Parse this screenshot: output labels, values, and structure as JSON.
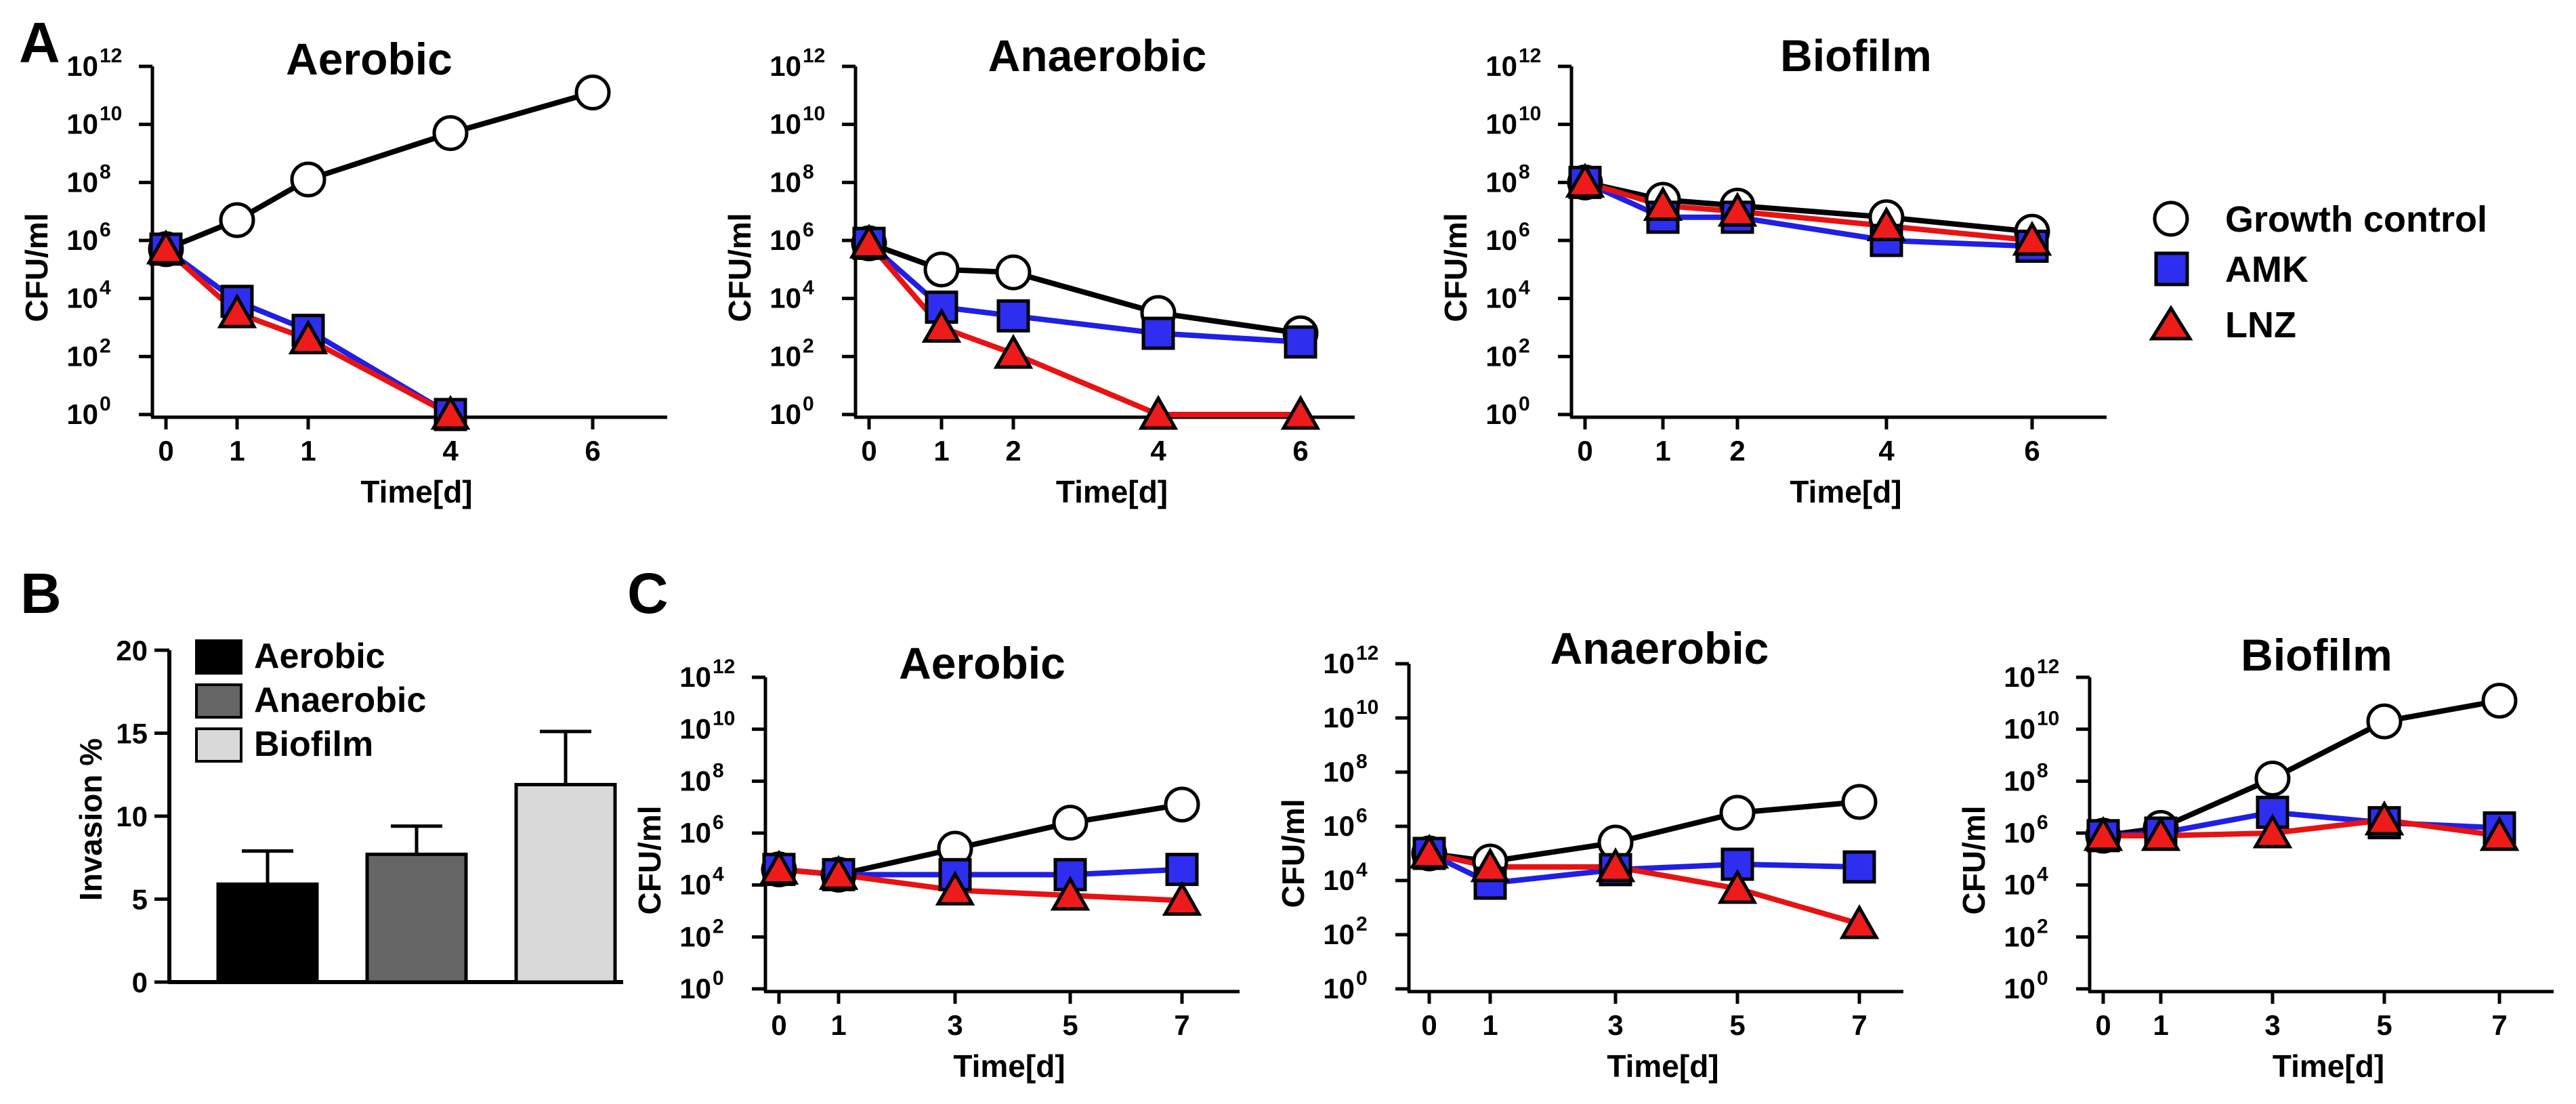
{
  "panels": [
    {
      "letter": "A"
    },
    {
      "letter": "B"
    },
    {
      "letter": "C"
    }
  ],
  "series_legend": [
    {
      "name": "Growth control",
      "marker": "circle",
      "color": "#000000",
      "fill": "#ffffff"
    },
    {
      "name": "AMK",
      "marker": "square",
      "color": "#1f1fe6",
      "fill": "#2e2ef0"
    },
    {
      "name": "LNZ",
      "marker": "triangle",
      "color": "#e81212",
      "fill": "#ee1b1b"
    }
  ],
  "colors": {
    "growth_line": "#000000",
    "amk_line": "#1f1fe6",
    "lnz_line": "#e81212",
    "bar_aerobic": "#000000",
    "bar_anaerobic": "#666666",
    "bar_biofilm": "#d9d9d9"
  },
  "chart_data": [
    {
      "id": "A1",
      "type": "line",
      "panel": "A",
      "title": "Aerobic",
      "xlabel": "Time[d]",
      "ylabel": "CFU/ml",
      "yscale": "log10",
      "ylim_exp": [
        0,
        12
      ],
      "y_ticks": [
        "10",
        "10",
        "10",
        "10",
        "10",
        "10",
        "10"
      ],
      "y_tick_exponents": [
        "0",
        "2",
        "4",
        "6",
        "8",
        "10",
        "12"
      ],
      "x_tick_labels": [
        "0",
        "1",
        "1",
        "4",
        "6"
      ],
      "series": [
        {
          "name": "Growth control",
          "log10_values": [
            5.7,
            6.7,
            8.1,
            9.7,
            11.1
          ]
        },
        {
          "name": "AMK",
          "log10_values": [
            5.7,
            3.9,
            2.9,
            0.0,
            null
          ]
        },
        {
          "name": "LNZ",
          "log10_values": [
            5.7,
            3.5,
            2.6,
            0.0,
            null
          ]
        }
      ]
    },
    {
      "id": "A2",
      "type": "line",
      "panel": "A",
      "title": "Anaerobic",
      "xlabel": "Time[d]",
      "ylabel": "CFU/ml",
      "yscale": "log10",
      "ylim_exp": [
        0,
        12
      ],
      "y_ticks": [
        "10",
        "10",
        "10",
        "10",
        "10",
        "10",
        "10"
      ],
      "y_tick_exponents": [
        "0",
        "2",
        "4",
        "6",
        "8",
        "10",
        "12"
      ],
      "x_tick_labels": [
        "0",
        "1",
        "2",
        "4",
        "6"
      ],
      "series": [
        {
          "name": "Growth control",
          "log10_values": [
            5.9,
            5.0,
            4.9,
            3.5,
            2.8
          ]
        },
        {
          "name": "AMK",
          "log10_values": [
            5.9,
            3.7,
            3.4,
            2.8,
            2.5
          ]
        },
        {
          "name": "LNZ",
          "log10_values": [
            5.9,
            3.0,
            2.1,
            0.0,
            0.0
          ]
        }
      ]
    },
    {
      "id": "A3",
      "type": "line",
      "panel": "A",
      "title": "Biofilm",
      "xlabel": "Time[d]",
      "ylabel": "CFU/ml",
      "yscale": "log10",
      "ylim_exp": [
        0,
        12
      ],
      "y_ticks": [
        "10",
        "10",
        "10",
        "10",
        "10",
        "10",
        "10"
      ],
      "y_tick_exponents": [
        "0",
        "2",
        "4",
        "6",
        "8",
        "10",
        "12"
      ],
      "x_tick_labels": [
        "0",
        "1",
        "2",
        "4",
        "6"
      ],
      "series": [
        {
          "name": "Growth control",
          "log10_values": [
            8.0,
            7.4,
            7.2,
            6.8,
            6.3
          ]
        },
        {
          "name": "AMK",
          "log10_values": [
            8.0,
            6.8,
            6.8,
            6.0,
            5.8
          ]
        },
        {
          "name": "LNZ",
          "log10_values": [
            8.0,
            7.2,
            7.0,
            6.5,
            6.0
          ]
        }
      ]
    },
    {
      "id": "B",
      "type": "bar",
      "panel": "B",
      "title": "",
      "xlabel": "",
      "ylabel": "Invasion %",
      "ylim": [
        0,
        20
      ],
      "y_tick_labels": [
        "0",
        "5",
        "10",
        "15",
        "20"
      ],
      "categories": [
        "Aerobic",
        "Anaerobic",
        "Biofilm"
      ],
      "values": [
        5.9,
        7.7,
        11.9
      ],
      "errors": [
        2.0,
        1.7,
        3.2
      ]
    },
    {
      "id": "C1",
      "type": "line",
      "panel": "C",
      "title": "Aerobic",
      "xlabel": "Time[d]",
      "ylabel": "CFU/ml",
      "yscale": "log10",
      "ylim_exp": [
        0,
        12
      ],
      "y_ticks": [
        "10",
        "10",
        "10",
        "10",
        "10",
        "10",
        "10"
      ],
      "y_tick_exponents": [
        "0",
        "2",
        "4",
        "6",
        "8",
        "10",
        "12"
      ],
      "x_tick_labels": [
        "0",
        "1",
        "3",
        "5",
        "7"
      ],
      "series": [
        {
          "name": "Growth control",
          "log10_values": [
            4.6,
            4.4,
            5.4,
            6.4,
            7.1
          ]
        },
        {
          "name": "AMK",
          "log10_values": [
            4.6,
            4.4,
            4.4,
            4.4,
            4.6
          ]
        },
        {
          "name": "LNZ",
          "log10_values": [
            4.6,
            4.4,
            3.8,
            3.6,
            3.4
          ]
        }
      ]
    },
    {
      "id": "C2",
      "type": "line",
      "panel": "C",
      "title": "Anaerobic",
      "xlabel": "Time[d]",
      "ylabel": "CFU/ml",
      "yscale": "log10",
      "ylim_exp": [
        0,
        12
      ],
      "y_ticks": [
        "10",
        "10",
        "10",
        "10",
        "10",
        "10",
        "10"
      ],
      "y_tick_exponents": [
        "0",
        "2",
        "4",
        "6",
        "8",
        "10",
        "12"
      ],
      "x_tick_labels": [
        "0",
        "1",
        "3",
        "5",
        "7"
      ],
      "series": [
        {
          "name": "Growth control",
          "log10_values": [
            5.0,
            4.7,
            5.4,
            6.5,
            6.9
          ]
        },
        {
          "name": "AMK",
          "log10_values": [
            5.0,
            3.9,
            4.4,
            4.6,
            4.5
          ]
        },
        {
          "name": "LNZ",
          "log10_values": [
            5.0,
            4.5,
            4.5,
            3.7,
            2.4
          ]
        }
      ]
    },
    {
      "id": "C3",
      "type": "line",
      "panel": "C",
      "title": "Biofilm",
      "xlabel": "Time[d]",
      "ylabel": "CFU/ml",
      "yscale": "log10",
      "ylim_exp": [
        0,
        12
      ],
      "y_ticks": [
        "10",
        "10",
        "10",
        "10",
        "10",
        "10",
        "10"
      ],
      "y_tick_exponents": [
        "0",
        "2",
        "4",
        "6",
        "8",
        "10",
        "12"
      ],
      "x_tick_labels": [
        "0",
        "1",
        "3",
        "5",
        "7"
      ],
      "series": [
        {
          "name": "Growth control",
          "log10_values": [
            5.9,
            6.2,
            8.1,
            10.3,
            11.1
          ]
        },
        {
          "name": "AMK",
          "log10_values": [
            5.9,
            6.0,
            6.8,
            6.4,
            6.2
          ]
        },
        {
          "name": "LNZ",
          "log10_values": [
            5.9,
            5.9,
            6.0,
            6.5,
            5.9
          ]
        }
      ]
    }
  ]
}
